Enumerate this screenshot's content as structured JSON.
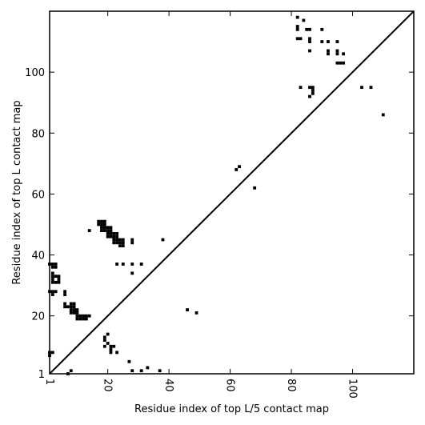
{
  "chart_data": {
    "type": "heatmap",
    "title": "",
    "xlabel": "Residue index of top L/5 contact map",
    "ylabel": "Residue index of top L contact map",
    "xlim": [
      1,
      120
    ],
    "ylim": [
      1,
      120
    ],
    "x_ticks": [
      1,
      20,
      40,
      60,
      80,
      100
    ],
    "y_ticks": [
      1,
      20,
      40,
      60,
      80,
      100
    ],
    "x_tick_labels": [
      "1",
      "20",
      "40",
      "60",
      "80",
      "100"
    ],
    "y_tick_labels": [
      "1",
      "20",
      "40",
      "60",
      "80",
      "100"
    ],
    "diagonal": [
      [
        1,
        1
      ],
      [
        120,
        120
      ]
    ],
    "grid": false,
    "color": "#000000",
    "contacts_upper_left": [
      [
        82,
        118
      ],
      [
        84,
        117
      ],
      [
        82,
        115
      ],
      [
        82,
        114
      ],
      [
        85,
        114
      ],
      [
        86,
        114
      ],
      [
        90,
        114
      ],
      [
        82,
        111
      ],
      [
        83,
        111
      ],
      [
        86,
        111
      ],
      [
        86,
        110
      ],
      [
        90,
        110
      ],
      [
        92,
        110
      ],
      [
        95,
        110
      ],
      [
        92,
        107
      ],
      [
        92,
        106
      ],
      [
        95,
        107
      ],
      [
        95,
        106
      ],
      [
        97,
        106
      ],
      [
        86,
        107
      ],
      [
        95,
        103
      ],
      [
        96,
        103
      ],
      [
        97,
        103
      ],
      [
        83,
        95
      ],
      [
        86,
        95
      ],
      [
        87,
        95
      ],
      [
        103,
        95
      ],
      [
        106,
        95
      ],
      [
        87,
        94
      ],
      [
        87,
        93
      ],
      [
        86,
        92
      ],
      [
        110,
        86
      ],
      [
        62,
        68
      ],
      [
        63,
        69
      ],
      [
        68,
        62
      ],
      [
        38,
        45
      ],
      [
        17,
        51
      ],
      [
        18,
        51
      ],
      [
        19,
        51
      ],
      [
        17,
        50
      ],
      [
        18,
        50
      ],
      [
        19,
        50
      ],
      [
        18,
        49
      ],
      [
        19,
        49
      ],
      [
        20,
        49
      ],
      [
        21,
        49
      ],
      [
        18,
        48
      ],
      [
        19,
        48
      ],
      [
        20,
        48
      ],
      [
        21,
        48
      ],
      [
        20,
        47
      ],
      [
        21,
        47
      ],
      [
        22,
        47
      ],
      [
        23,
        47
      ],
      [
        20,
        46
      ],
      [
        21,
        46
      ],
      [
        22,
        46
      ],
      [
        23,
        46
      ],
      [
        22,
        45
      ],
      [
        23,
        45
      ],
      [
        24,
        45
      ],
      [
        25,
        45
      ],
      [
        22,
        44
      ],
      [
        23,
        44
      ],
      [
        24,
        44
      ],
      [
        25,
        44
      ],
      [
        28,
        45
      ],
      [
        28,
        44
      ],
      [
        24,
        43
      ],
      [
        25,
        43
      ],
      [
        14,
        48
      ],
      [
        23,
        37
      ],
      [
        25,
        37
      ],
      [
        28,
        37
      ],
      [
        31,
        37
      ],
      [
        28,
        34
      ]
    ],
    "contacts_lower_right": [
      [
        1,
        37
      ],
      [
        2,
        37
      ],
      [
        3,
        37
      ],
      [
        2,
        36
      ],
      [
        3,
        36
      ],
      [
        2,
        34
      ],
      [
        2,
        33
      ],
      [
        3,
        33
      ],
      [
        4,
        33
      ],
      [
        2,
        32
      ],
      [
        4,
        32
      ],
      [
        2,
        31
      ],
      [
        3,
        31
      ],
      [
        4,
        31
      ],
      [
        1,
        28
      ],
      [
        2,
        28
      ],
      [
        3,
        28
      ],
      [
        2,
        27
      ],
      [
        6,
        28
      ],
      [
        6,
        27
      ],
      [
        6,
        24
      ],
      [
        8,
        24
      ],
      [
        9,
        24
      ],
      [
        6,
        23
      ],
      [
        7,
        23
      ],
      [
        8,
        23
      ],
      [
        9,
        23
      ],
      [
        8,
        22
      ],
      [
        9,
        22
      ],
      [
        10,
        22
      ],
      [
        8,
        21
      ],
      [
        9,
        21
      ],
      [
        10,
        21
      ],
      [
        10,
        20
      ],
      [
        11,
        20
      ],
      [
        12,
        20
      ],
      [
        13,
        20
      ],
      [
        14,
        20
      ],
      [
        10,
        19
      ],
      [
        11,
        19
      ],
      [
        12,
        19
      ],
      [
        13,
        19
      ],
      [
        20,
        14
      ],
      [
        19,
        13
      ],
      [
        19,
        12
      ],
      [
        20,
        11
      ],
      [
        19,
        10
      ],
      [
        21,
        10
      ],
      [
        22,
        10
      ],
      [
        21,
        9
      ],
      [
        21,
        8
      ],
      [
        23,
        8
      ],
      [
        1,
        8
      ],
      [
        2,
        8
      ],
      [
        1,
        7
      ],
      [
        27,
        5
      ],
      [
        33,
        3
      ],
      [
        7,
        1
      ],
      [
        8,
        2
      ],
      [
        28,
        2
      ],
      [
        31,
        2
      ],
      [
        37,
        2
      ],
      [
        46,
        22
      ],
      [
        49,
        21
      ]
    ]
  }
}
